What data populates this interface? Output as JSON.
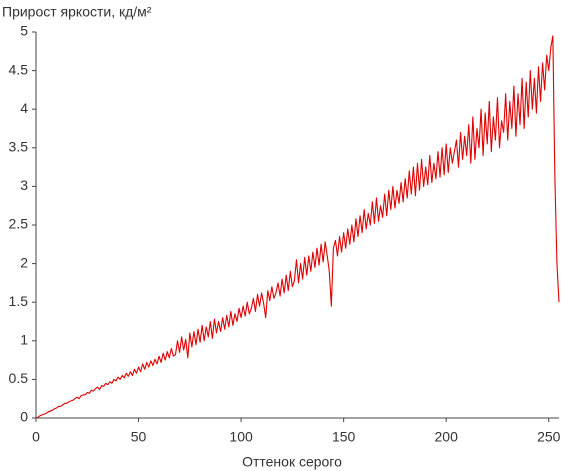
{
  "chart_data": {
    "type": "line",
    "ylabel": "Прирост яркости, кд/м²",
    "xlabel": "Оттенок серого",
    "xlim": [
      0,
      255
    ],
    "ylim": [
      0,
      5
    ],
    "xticks": [
      0,
      50,
      100,
      150,
      200,
      250
    ],
    "yticks": [
      0,
      0.5,
      1,
      1.5,
      2,
      2.5,
      3,
      3.5,
      4,
      4.5,
      5
    ],
    "x": [
      0,
      1,
      2,
      3,
      4,
      5,
      6,
      7,
      8,
      9,
      10,
      11,
      12,
      13,
      14,
      15,
      16,
      17,
      18,
      19,
      20,
      21,
      22,
      23,
      24,
      25,
      26,
      27,
      28,
      29,
      30,
      31,
      32,
      33,
      34,
      35,
      36,
      37,
      38,
      39,
      40,
      41,
      42,
      43,
      44,
      45,
      46,
      47,
      48,
      49,
      50,
      51,
      52,
      53,
      54,
      55,
      56,
      57,
      58,
      59,
      60,
      61,
      62,
      63,
      64,
      65,
      66,
      67,
      68,
      69,
      70,
      71,
      72,
      73,
      74,
      75,
      76,
      77,
      78,
      79,
      80,
      81,
      82,
      83,
      84,
      85,
      86,
      87,
      88,
      89,
      90,
      91,
      92,
      93,
      94,
      95,
      96,
      97,
      98,
      99,
      100,
      101,
      102,
      103,
      104,
      105,
      106,
      107,
      108,
      109,
      110,
      111,
      112,
      113,
      114,
      115,
      116,
      117,
      118,
      119,
      120,
      121,
      122,
      123,
      124,
      125,
      126,
      127,
      128,
      129,
      130,
      131,
      132,
      133,
      134,
      135,
      136,
      137,
      138,
      139,
      140,
      141,
      142,
      143,
      144,
      145,
      146,
      147,
      148,
      149,
      150,
      151,
      152,
      153,
      154,
      155,
      156,
      157,
      158,
      159,
      160,
      161,
      162,
      163,
      164,
      165,
      166,
      167,
      168,
      169,
      170,
      171,
      172,
      173,
      174,
      175,
      176,
      177,
      178,
      179,
      180,
      181,
      182,
      183,
      184,
      185,
      186,
      187,
      188,
      189,
      190,
      191,
      192,
      193,
      194,
      195,
      196,
      197,
      198,
      199,
      200,
      201,
      202,
      203,
      204,
      205,
      206,
      207,
      208,
      209,
      210,
      211,
      212,
      213,
      214,
      215,
      216,
      217,
      218,
      219,
      220,
      221,
      222,
      223,
      224,
      225,
      226,
      227,
      228,
      229,
      230,
      231,
      232,
      233,
      234,
      235,
      236,
      237,
      238,
      239,
      240,
      241,
      242,
      243,
      244,
      245,
      246,
      247,
      248,
      249,
      250,
      251,
      252,
      253,
      254,
      255
    ],
    "series": [
      {
        "color": "#e00000",
        "values": [
          0,
          0.01,
          0.03,
          0.04,
          0.05,
          0.06,
          0.08,
          0.09,
          0.1,
          0.12,
          0.13,
          0.15,
          0.15,
          0.17,
          0.19,
          0.19,
          0.21,
          0.22,
          0.23,
          0.25,
          0.27,
          0.25,
          0.29,
          0.3,
          0.3,
          0.33,
          0.32,
          0.36,
          0.35,
          0.38,
          0.4,
          0.37,
          0.42,
          0.41,
          0.45,
          0.43,
          0.47,
          0.45,
          0.5,
          0.48,
          0.53,
          0.5,
          0.55,
          0.52,
          0.58,
          0.54,
          0.6,
          0.55,
          0.63,
          0.58,
          0.66,
          0.6,
          0.7,
          0.63,
          0.72,
          0.66,
          0.74,
          0.68,
          0.76,
          0.7,
          0.8,
          0.72,
          0.84,
          0.75,
          0.86,
          0.78,
          0.9,
          0.8,
          0.82,
          1.0,
          0.85,
          1.05,
          0.88,
          1.02,
          0.78,
          1.1,
          0.92,
          1.12,
          0.95,
          1.15,
          0.98,
          1.2,
          1.0,
          1.18,
          1.05,
          1.25,
          1.03,
          1.28,
          1.1,
          1.25,
          1.12,
          1.3,
          1.15,
          1.33,
          1.18,
          1.38,
          1.2,
          1.35,
          1.25,
          1.42,
          1.3,
          1.45,
          1.32,
          1.5,
          1.35,
          1.42,
          1.55,
          1.38,
          1.6,
          1.45,
          1.62,
          1.48,
          1.3,
          1.65,
          1.52,
          1.7,
          1.55,
          1.62,
          1.75,
          1.58,
          1.8,
          1.62,
          1.85,
          1.65,
          1.9,
          1.7,
          1.78,
          2.05,
          1.75,
          2.0,
          1.8,
          2.08,
          1.85,
          2.1,
          1.9,
          2.15,
          1.95,
          2.2,
          1.98,
          2.25,
          2.02,
          2.28,
          2.1,
          1.9,
          1.45,
          2.2,
          2.3,
          2.1,
          2.35,
          2.15,
          2.4,
          2.2,
          2.45,
          2.25,
          2.5,
          2.28,
          2.58,
          2.35,
          2.62,
          2.4,
          2.7,
          2.45,
          2.65,
          2.5,
          2.8,
          2.52,
          2.85,
          2.55,
          2.75,
          2.6,
          2.9,
          2.62,
          2.95,
          2.7,
          3.0,
          2.72,
          2.95,
          2.78,
          3.05,
          2.8,
          3.1,
          2.85,
          3.2,
          2.9,
          3.25,
          2.88,
          3.3,
          2.95,
          3.35,
          3.0,
          3.25,
          3.02,
          3.4,
          3.05,
          3.3,
          3.1,
          3.45,
          3.12,
          3.5,
          3.15,
          3.55,
          3.18,
          3.5,
          3.3,
          3.45,
          3.6,
          3.25,
          3.7,
          3.35,
          3.65,
          3.4,
          3.8,
          3.3,
          3.9,
          3.35,
          3.75,
          3.5,
          4.0,
          3.4,
          3.95,
          3.55,
          4.1,
          3.45,
          3.9,
          3.6,
          4.15,
          3.5,
          3.85,
          3.7,
          4.2,
          3.6,
          4.1,
          3.75,
          4.3,
          3.65,
          4.2,
          3.8,
          4.4,
          3.75,
          4.35,
          3.9,
          4.5,
          4.0,
          4.4,
          3.95,
          4.55,
          4.1,
          4.6,
          4.25,
          4.7,
          4.5,
          4.8,
          4.95,
          3.1,
          2.0,
          1.5
        ]
      }
    ]
  }
}
